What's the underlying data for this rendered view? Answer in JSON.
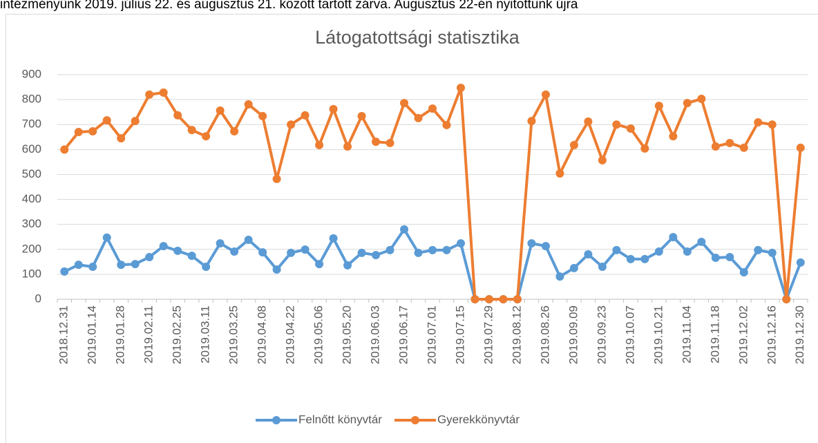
{
  "note": "intézményünk 2019. július 22. és augusztus 21. között tartott zárva. Augusztus 22-én nyitottunk újra",
  "chart_data": {
    "type": "line",
    "title": "Látogatottsági statisztika",
    "categories": [
      "2018.12.31",
      null,
      "2019.01.14",
      null,
      "2019.01.28",
      null,
      "2019.02.11",
      null,
      "2019.02.25",
      null,
      "2019.03.11",
      null,
      "2019.03.25",
      null,
      "2019.04.08",
      null,
      "2019.04.22",
      null,
      "2019.05.06",
      null,
      "2019.05.20",
      null,
      "2019.06.03",
      null,
      "2019.06.17",
      null,
      "2019.07.01",
      null,
      "2019.07.15",
      null,
      "2019.07.29",
      null,
      "2019.08.12",
      null,
      "2019.08.26",
      null,
      "2019.09.09",
      null,
      "2019.09.23",
      null,
      "2019.10.07",
      null,
      "2019.10.21",
      null,
      "2019.11.04",
      null,
      "2019.11.18",
      null,
      "2019.12.02",
      null,
      "2019.12.16",
      null,
      "2019.12.30"
    ],
    "series": [
      {
        "name": "Felnőtt könyvtár",
        "color": "#5b9bd5",
        "values": [
          111,
          138,
          130,
          247,
          138,
          141,
          169,
          213,
          194,
          174,
          130,
          224,
          191,
          238,
          188,
          119,
          186,
          199,
          141,
          244,
          136,
          186,
          177,
          197,
          280,
          186,
          197,
          197,
          224,
          0,
          0,
          0,
          0,
          224,
          213,
          91,
          125,
          180,
          130,
          197,
          161,
          161,
          191,
          249,
          191,
          230,
          166,
          169,
          108,
          197,
          186,
          0,
          147
        ]
      },
      {
        "name": "Gyerekkönyvtár",
        "color": "#ed7d31",
        "values": [
          600,
          670,
          673,
          717,
          645,
          714,
          820,
          828,
          737,
          678,
          653,
          756,
          673,
          781,
          734,
          482,
          700,
          737,
          618,
          762,
          612,
          734,
          631,
          626,
          786,
          726,
          764,
          698,
          847,
          0,
          0,
          0,
          0,
          714,
          820,
          504,
          618,
          712,
          557,
          700,
          684,
          604,
          775,
          653,
          786,
          803,
          612,
          626,
          607,
          709,
          700,
          0,
          607
        ]
      }
    ],
    "ylim": [
      0,
      900
    ],
    "yticks": [
      0,
      100,
      200,
      300,
      400,
      500,
      600,
      700,
      800,
      900
    ],
    "grid": true,
    "legend": "bottom"
  }
}
